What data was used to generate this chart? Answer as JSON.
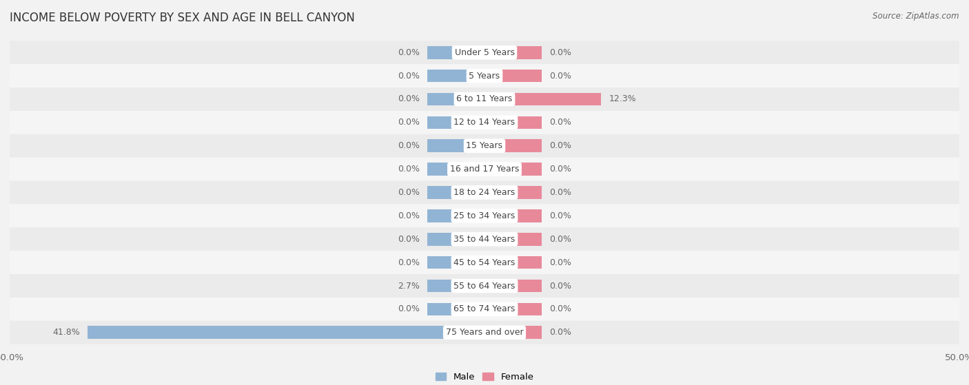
{
  "title": "INCOME BELOW POVERTY BY SEX AND AGE IN BELL CANYON",
  "source": "Source: ZipAtlas.com",
  "categories": [
    "Under 5 Years",
    "5 Years",
    "6 to 11 Years",
    "12 to 14 Years",
    "15 Years",
    "16 and 17 Years",
    "18 to 24 Years",
    "25 to 34 Years",
    "35 to 44 Years",
    "45 to 54 Years",
    "55 to 64 Years",
    "65 to 74 Years",
    "75 Years and over"
  ],
  "male_values": [
    0.0,
    0.0,
    0.0,
    0.0,
    0.0,
    0.0,
    0.0,
    0.0,
    0.0,
    0.0,
    2.7,
    0.0,
    41.8
  ],
  "female_values": [
    0.0,
    0.0,
    12.3,
    0.0,
    0.0,
    0.0,
    0.0,
    0.0,
    0.0,
    0.0,
    0.0,
    0.0,
    0.0
  ],
  "male_color": "#92b4d4",
  "female_color": "#e8899a",
  "male_label": "Male",
  "female_label": "Female",
  "xlim": 50.0,
  "stub": 6.0,
  "title_fontsize": 12,
  "source_fontsize": 8.5,
  "axis_label_fontsize": 9.5,
  "bar_label_fontsize": 9,
  "category_fontsize": 9,
  "row_colors": [
    "#ebebeb",
    "#f5f5f5"
  ]
}
